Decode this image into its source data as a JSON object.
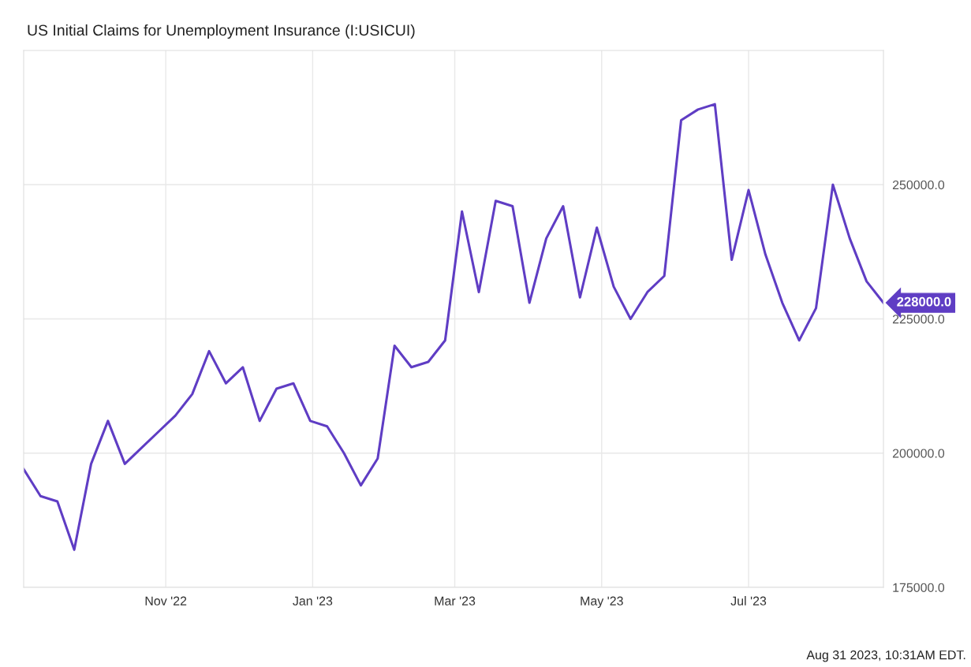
{
  "chart_data": {
    "type": "line",
    "title": "US Initial Claims for Unemployment Insurance (I:USICUI)",
    "x": [
      "2022-09-03",
      "2022-09-10",
      "2022-09-17",
      "2022-09-24",
      "2022-10-01",
      "2022-10-08",
      "2022-10-15",
      "2022-10-22",
      "2022-10-29",
      "2022-11-05",
      "2022-11-12",
      "2022-11-19",
      "2022-11-26",
      "2022-12-03",
      "2022-12-10",
      "2022-12-17",
      "2022-12-24",
      "2022-12-31",
      "2023-01-07",
      "2023-01-14",
      "2023-01-21",
      "2023-01-28",
      "2023-02-04",
      "2023-02-11",
      "2023-02-18",
      "2023-02-25",
      "2023-03-04",
      "2023-03-11",
      "2023-03-18",
      "2023-03-25",
      "2023-04-01",
      "2023-04-08",
      "2023-04-15",
      "2023-04-22",
      "2023-04-29",
      "2023-05-06",
      "2023-05-13",
      "2023-05-20",
      "2023-05-27",
      "2023-06-03",
      "2023-06-10",
      "2023-06-17",
      "2023-06-24",
      "2023-07-01",
      "2023-07-08",
      "2023-07-15",
      "2023-07-22",
      "2023-07-29",
      "2023-08-05",
      "2023-08-12",
      "2023-08-19",
      "2023-08-26"
    ],
    "series": [
      {
        "color": "#5f3dc4",
        "values": [
          197000,
          192000,
          191000,
          182000,
          198000,
          206000,
          198000,
          201000,
          204000,
          207000,
          211000,
          219000,
          213000,
          216000,
          206000,
          212000,
          213000,
          206000,
          205000,
          200000,
          194000,
          199000,
          220000,
          216000,
          217000,
          221000,
          245000,
          230000,
          247000,
          246000,
          228000,
          240000,
          246000,
          229000,
          242000,
          231000,
          225000,
          230000,
          233000,
          262000,
          264000,
          265000,
          236000,
          249000,
          237000,
          228000,
          221000,
          227000,
          250000,
          240000,
          232000,
          228000
        ]
      }
    ],
    "xlim": [
      "2022-09-03",
      "2023-08-26"
    ],
    "xticks": [
      {
        "value": "2022-11-01",
        "label": "Nov '22"
      },
      {
        "value": "2023-01-01",
        "label": "Jan '23"
      },
      {
        "value": "2023-03-01",
        "label": "Mar '23"
      },
      {
        "value": "2023-05-01",
        "label": "May '23"
      },
      {
        "value": "2023-07-01",
        "label": "Jul '23"
      }
    ],
    "ylim": [
      175000,
      275000
    ],
    "yticks": [
      {
        "value": 175000,
        "label": "175000.0"
      },
      {
        "value": 200000,
        "label": "200000.0"
      },
      {
        "value": 225000,
        "label": "225000.0"
      },
      {
        "value": 250000,
        "label": "250000.0"
      }
    ],
    "grid": true,
    "marker": "none",
    "line_style": "solid",
    "legend": false,
    "annotations": [
      {
        "text": "228000.0",
        "x": "2023-08-26",
        "y": 228000
      },
      "Aug 31 2023, 10:31AM EDT."
    ]
  }
}
